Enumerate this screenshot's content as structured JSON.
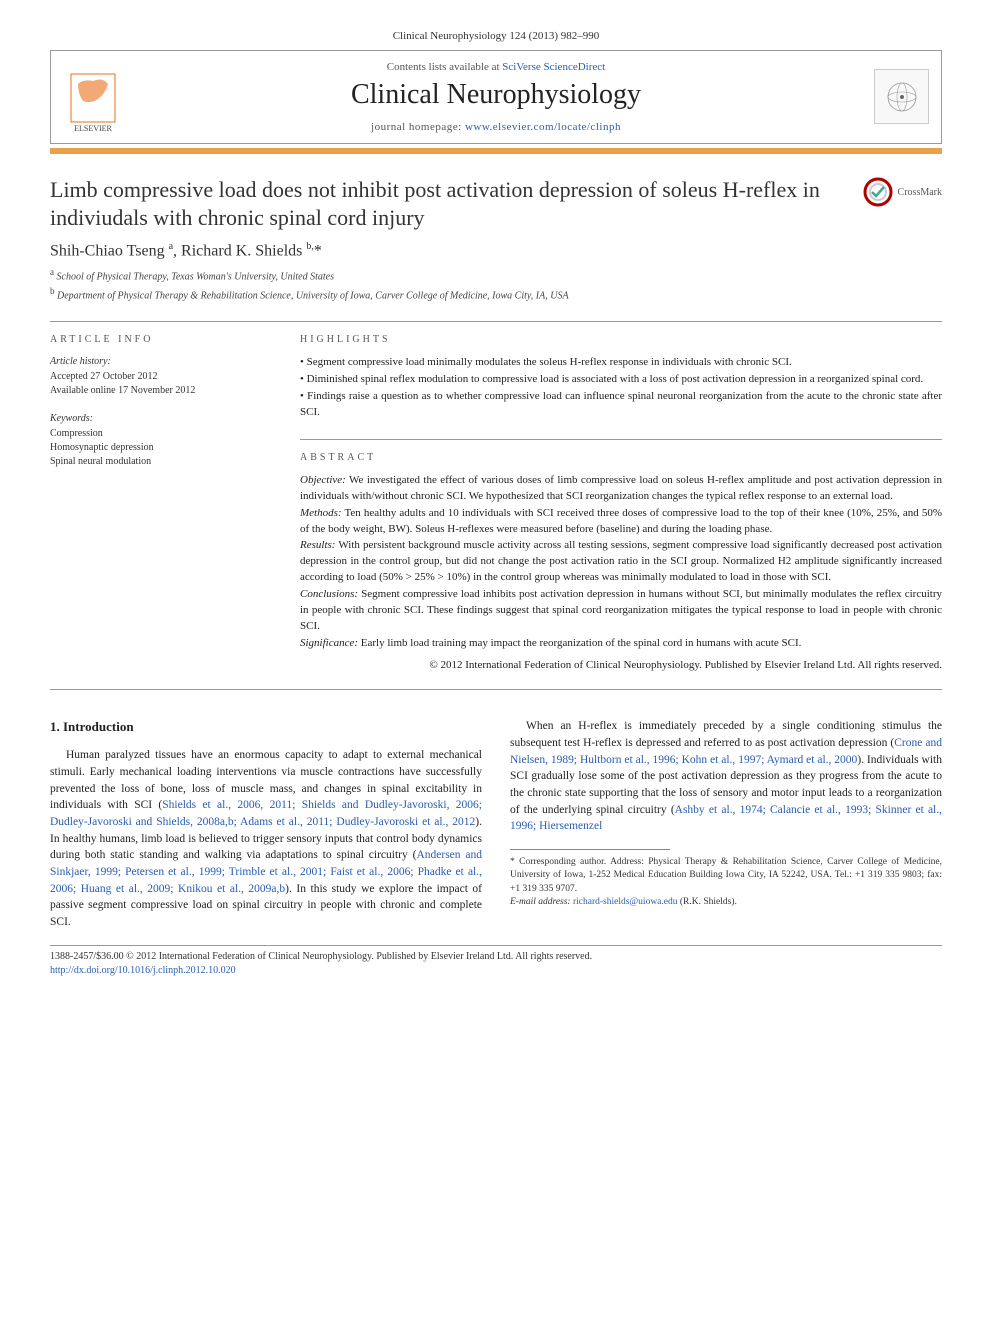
{
  "journal_ref": "Clinical Neurophysiology 124 (2013) 982–990",
  "header": {
    "contents_line_prefix": "Contents lists available at ",
    "contents_link": "SciVerse ScienceDirect",
    "journal_title": "Clinical Neurophysiology",
    "homepage_prefix": "journal homepage: ",
    "homepage_url": "www.elsevier.com/locate/clinph",
    "publisher_name": "ELSEVIER"
  },
  "colors": {
    "orange_bar": "#e8a04a",
    "link": "#2a5db0",
    "crossmark_ring": "#b00000",
    "elsevier": "#e8701a"
  },
  "article": {
    "title": "Limb compressive load does not inhibit post activation depression of soleus H-reflex in indiviudals with chronic spinal cord injury",
    "crossmark_label": "CrossMark",
    "authors_html": "Shih-Chiao Tseng <sup>a</sup>, Richard K. Shields <sup>b,</sup>*",
    "affiliations": [
      {
        "sup": "a",
        "text": "School of Physical Therapy, Texas Woman's University, United States"
      },
      {
        "sup": "b",
        "text": "Department of Physical Therapy & Rehabilitation Science, University of Iowa, Carver College of Medicine, Iowa City, IA, USA"
      }
    ]
  },
  "info": {
    "label": "ARTICLE INFO",
    "history_head": "Article history:",
    "history_lines": [
      "Accepted 27 October 2012",
      "Available online 17 November 2012"
    ],
    "keywords_head": "Keywords:",
    "keywords": [
      "Compression",
      "Homosynaptic depression",
      "Spinal neural modulation"
    ]
  },
  "highlights": {
    "label": "HIGHLIGHTS",
    "items": [
      "Segment compressive load minimally modulates the soleus H-reflex response in individuals with chronic SCI.",
      "Diminished spinal reflex modulation to compressive load is associated with a loss of post activation depression in a reorganized spinal cord.",
      "Findings raise a question as to whether compressive load can influence spinal neuronal reorganization from the acute to the chronic state after SCI."
    ]
  },
  "abstract": {
    "label": "ABSTRACT",
    "sections": [
      {
        "label": "Objective:",
        "text": "We investigated the effect of various doses of limb compressive load on soleus H-reflex amplitude and post activation depression in individuals with/without chronic SCI. We hypothesized that SCI reorganization changes the typical reflex response to an external load."
      },
      {
        "label": "Methods:",
        "text": "Ten healthy adults and 10 individuals with SCI received three doses of compressive load to the top of their knee (10%, 25%, and 50% of the body weight, BW). Soleus H-reflexes were measured before (baseline) and during the loading phase."
      },
      {
        "label": "Results:",
        "text": "With persistent background muscle activity across all testing sessions, segment compressive load significantly decreased post activation depression in the control group, but did not change the post activation ratio in the SCI group. Normalized H2 amplitude significantly increased according to load (50% > 25% > 10%) in the control group whereas was minimally modulated to load in those with SCI."
      },
      {
        "label": "Conclusions:",
        "text": "Segment compressive load inhibits post activation depression in humans without SCI, but minimally modulates the reflex circuitry in people with chronic SCI. These findings suggest that spinal cord reorganization mitigates the typical response to load in people with chronic SCI."
      },
      {
        "label": "Significance:",
        "text": "Early limb load training may impact the reorganization of the spinal cord in humans with acute SCI."
      }
    ],
    "copyright": "© 2012 International Federation of Clinical Neurophysiology. Published by Elsevier Ireland Ltd. All rights reserved."
  },
  "body": {
    "section_number": "1.",
    "section_title": "Introduction",
    "para1_pre": "Human paralyzed tissues have an enormous capacity to adapt to external mechanical stimuli. Early mechanical loading interventions via muscle contractions have successfully prevented the loss of bone, loss of muscle mass, and changes in spinal excitability in individuals with SCI (",
    "para1_cite1": "Shields et al., 2006, 2011; Shields and Dudley-Javoroski, 2006; Dudley-Javoroski and Shields, 2008a,b; Adams et al., 2011; Dudley-Javoroski et al., 2012",
    "para1_post": "). In healthy humans, limb load is believed to trigger sensory inputs that control ",
    "para1b_pre": "body dynamics during both static standing and walking via adaptations to spinal circuitry (",
    "para1b_cite": "Andersen and Sinkjaer, 1999; Petersen et al., 1999; Trimble et al., 2001; Faist et al., 2006; Phadke et al., 2006; Huang et al., 2009; Knikou et al., 2009a,b",
    "para1b_post": "). In this study we explore the impact of passive segment compressive load on spinal circuitry in people with chronic and complete SCI.",
    "para2_pre": "When an H-reflex is immediately preceded by a single conditioning stimulus the subsequent test H-reflex is depressed and referred to as post activation depression (",
    "para2_cite1": "Crone and Nielsen, 1989; Hultborn et al., 1996; Kohn et al., 1997; Aymard et al., 2000",
    "para2_mid": "). Individuals with SCI gradually lose some of the post activation depression as they progress from the acute to the chronic state supporting that the loss of sensory and motor input leads to a reorganization of the underlying spinal circuitry (",
    "para2_cite2": "Ashby et al., 1974; Calancie et al., 1993; Skinner et al., 1996; Hiersemenzel"
  },
  "footnotes": {
    "corr_label": "* Corresponding author. Address: Physical Therapy & Rehabilitation Science, Carver College of Medicine, University of Iowa, 1-252 Medical Education Building Iowa City, IA 52242, USA. Tel.: +1 319 335 9803; fax: +1 319 335 9707.",
    "email_label": "E-mail address:",
    "email": "richard-shields@uiowa.edu",
    "email_suffix": "(R.K. Shields)."
  },
  "footer": {
    "copyright": "1388-2457/$36.00 © 2012 International Federation of Clinical Neurophysiology. Published by Elsevier Ireland Ltd. All rights reserved.",
    "doi": "http://dx.doi.org/10.1016/j.clinph.2012.10.020"
  }
}
